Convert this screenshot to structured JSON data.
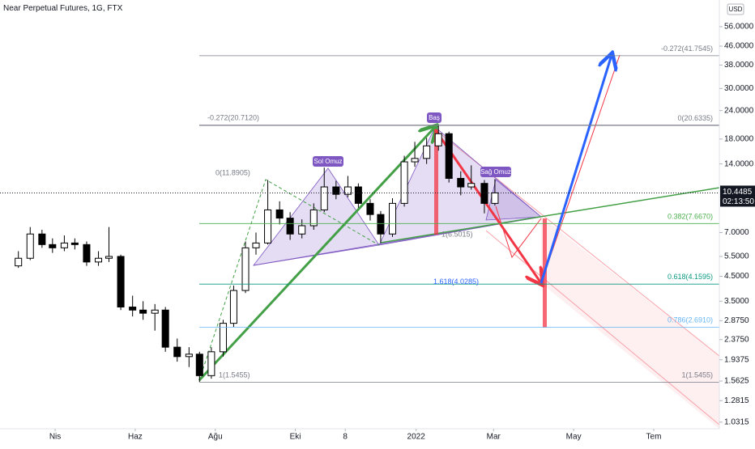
{
  "chart_data": {
    "type": "candlestick",
    "title": "Near Perpetual Futures, 1G, FTX",
    "currency": "USD",
    "log_scale": true,
    "grid": false,
    "ylim": [
      0.965,
      73.3
    ],
    "yticks": [
      {
        "value": 56,
        "label": "56.0000"
      },
      {
        "value": 46,
        "label": "46.0000"
      },
      {
        "value": 38,
        "label": "38.0000"
      },
      {
        "value": 30,
        "label": "30.0000"
      },
      {
        "value": 24,
        "label": "24.0000"
      },
      {
        "value": 18,
        "label": "18.0000"
      },
      {
        "value": 14,
        "label": "14.0000"
      },
      {
        "value": 7,
        "label": "7.0000"
      },
      {
        "value": 5.5,
        "label": "5.5000"
      },
      {
        "value": 4.5,
        "label": "4.5000"
      },
      {
        "value": 3.5,
        "label": "3.5000"
      },
      {
        "value": 2.875,
        "label": "2.8750"
      },
      {
        "value": 2.375,
        "label": "2.3750"
      },
      {
        "value": 1.9375,
        "label": "1.9375"
      },
      {
        "value": 1.5625,
        "label": "1.5625"
      },
      {
        "value": 1.2815,
        "label": "1.2815"
      },
      {
        "value": 1.0315,
        "label": "1.0315"
      }
    ],
    "xlim": [
      -42,
      506
    ],
    "xticks": [
      {
        "value": 0,
        "label": "Nis"
      },
      {
        "value": 61,
        "label": "Haz"
      },
      {
        "value": 122,
        "label": "Ağu"
      },
      {
        "value": 183,
        "label": "Eki"
      },
      {
        "value": 221,
        "label": "8"
      },
      {
        "value": 275,
        "label": "2022"
      },
      {
        "value": 334,
        "label": "Mar"
      },
      {
        "value": 395,
        "label": "May"
      },
      {
        "value": 456,
        "label": "Tem"
      }
    ],
    "up_color": "#000000",
    "down_color": "#000000",
    "x": [
      -28,
      -19,
      -10,
      -2,
      7,
      15,
      24,
      33,
      41,
      50,
      59,
      67,
      76,
      84,
      93,
      102,
      110,
      119,
      128,
      136,
      145,
      153,
      162,
      171,
      179,
      188,
      197,
      205,
      214,
      223,
      231,
      240,
      248,
      257,
      266,
      274,
      283,
      292,
      300,
      309,
      317,
      327,
      335
    ],
    "open": [
      5.0,
      5.4,
      6.9,
      6.2,
      6.0,
      6.3,
      6.2,
      5.2,
      5.4,
      5.5,
      3.3,
      3.2,
      3.1,
      3.2,
      2.2,
      2.0,
      2.05,
      1.65,
      2.1,
      2.8,
      3.9,
      6.0,
      6.3,
      8.8,
      8.1,
      6.9,
      7.5,
      8.8,
      11.1,
      10.3,
      11.1,
      9.4,
      8.4,
      6.9,
      9.4,
      14.3,
      14.8,
      16.8,
      19.0,
      12.1,
      11.1,
      11.5,
      9.4
    ],
    "high": [
      5.8,
      7.4,
      7.2,
      6.6,
      6.8,
      6.6,
      6.4,
      5.8,
      7.4,
      5.6,
      3.7,
      3.5,
      3.4,
      3.3,
      2.4,
      2.2,
      2.1,
      2.2,
      2.9,
      4.1,
      6.4,
      7.0,
      11.9,
      9.6,
      8.6,
      8.0,
      9.4,
      13.5,
      11.8,
      12.4,
      11.5,
      9.8,
      8.7,
      9.9,
      15.2,
      17.5,
      18.2,
      20.7,
      19.4,
      13.0,
      13.8,
      11.9,
      12.0
    ],
    "low": [
      4.9,
      5.3,
      6.0,
      5.7,
      5.8,
      5.9,
      5.0,
      5.0,
      5.2,
      3.2,
      3.0,
      2.9,
      2.6,
      2.1,
      1.9,
      1.8,
      1.5455,
      1.6,
      2.0,
      2.7,
      3.8,
      5.6,
      6.2,
      7.6,
      6.5,
      6.6,
      7.2,
      8.6,
      9.8,
      10.0,
      9.0,
      7.9,
      6.3,
      6.7,
      9.1,
      13.6,
      14.0,
      16.0,
      11.6,
      10.2,
      10.8,
      8.5,
      9.2
    ],
    "close": [
      5.4,
      6.9,
      6.2,
      6.0,
      6.3,
      6.2,
      5.2,
      5.4,
      5.5,
      3.3,
      3.2,
      3.1,
      3.2,
      2.2,
      2.0,
      2.05,
      1.65,
      2.1,
      2.8,
      3.9,
      6.0,
      6.3,
      8.8,
      8.1,
      6.9,
      7.5,
      8.8,
      11.1,
      10.3,
      11.1,
      9.4,
      8.4,
      6.9,
      9.4,
      14.3,
      14.8,
      16.8,
      19.0,
      12.1,
      11.1,
      11.5,
      9.4,
      10.45
    ],
    "last_price": {
      "value": 10.4485,
      "label": "10.4485"
    },
    "countdown": "02:13:50",
    "fib_levels": [
      {
        "label": "-0.272(41.7545)",
        "value": 41.7545,
        "color": "#787b86"
      },
      {
        "label": "-0.272(20.7120)",
        "value": 20.712,
        "color": "#787b86"
      },
      {
        "label": "0(20.6335)",
        "value": 20.6335,
        "color": "#787b86"
      },
      {
        "label": "0(11.8905)",
        "value": 11.8905,
        "color": "#787b86"
      },
      {
        "label": "0.382(7.6670)",
        "value": 7.667,
        "color": "#4caf50"
      },
      {
        "label": "1(6.5015)",
        "value": 6.5015,
        "color": "#787b86"
      },
      {
        "label": "0.618(4.1595)",
        "value": 4.1595,
        "color": "#089981"
      },
      {
        "label": "1.618(4.0285)",
        "value": 4.0285,
        "color": "#2962ff"
      },
      {
        "label": "0.786(2.6910)",
        "value": 2.691,
        "color": "#64b5f6"
      },
      {
        "label": "1(1.5455)",
        "value": 1.5455,
        "color": "#787b86"
      },
      {
        "label": "1(1.5455)",
        "value": 1.5455,
        "color": "#787b86"
      }
    ],
    "pattern_labels": [
      "Sol Omuz",
      "Baş",
      "Sağ Omuz"
    ]
  }
}
